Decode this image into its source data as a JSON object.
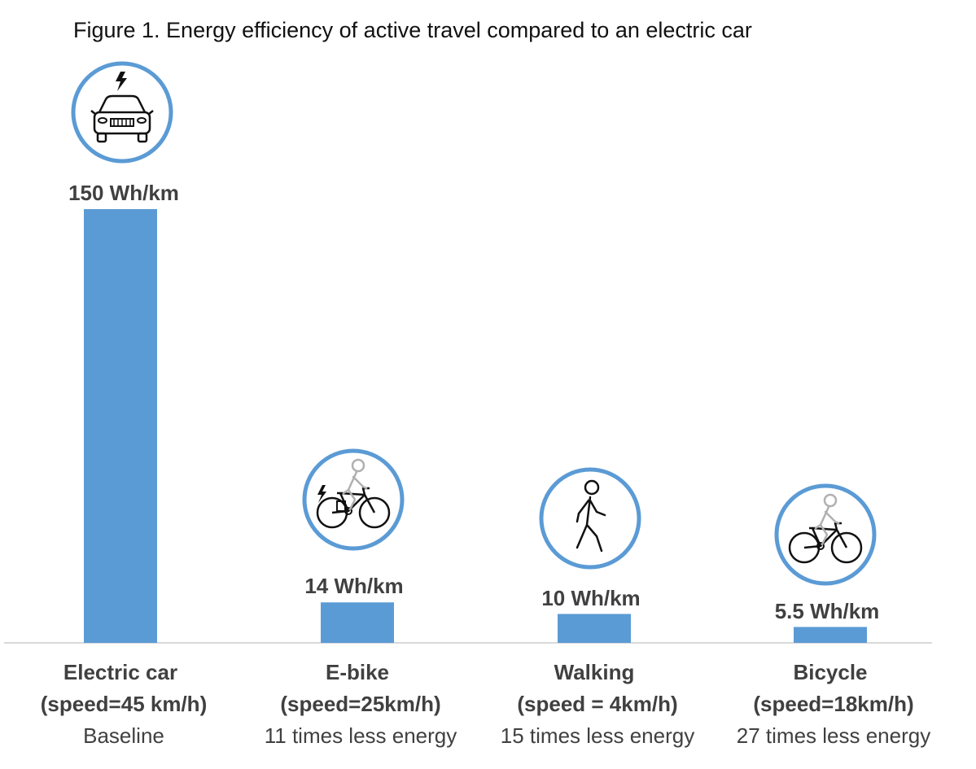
{
  "title": "Figure 1. Energy efficiency of active travel compared to an electric car",
  "chart_data": {
    "type": "bar",
    "title": "Figure 1. Energy efficiency of active travel compared to an electric car",
    "unit": "Wh/km",
    "categories": [
      "Electric car",
      "E-bike",
      "Walking",
      "Bicycle"
    ],
    "values": [
      150,
      14,
      10,
      5.5
    ],
    "value_labels": [
      "150 Wh/km",
      "14 Wh/km",
      "10 Wh/km",
      "5.5 Wh/km"
    ],
    "speeds": [
      "(speed=45 km/h)",
      "(speed=25km/h)",
      "(speed = 4km/h)",
      "(speed=18km/h)"
    ],
    "notes": [
      "Baseline",
      "11 times less energy",
      "15 times less energy",
      "27 times less energy"
    ],
    "icons": [
      "electric-car-icon",
      "e-bike-icon",
      "walking-person-icon",
      "bicycle-icon"
    ],
    "ylim": [
      0,
      150
    ],
    "grid": false,
    "colors": {
      "bar": "#5b9bd5",
      "icon_ring": "#5b9bd5",
      "axis": "#d9d9d9",
      "text": "#404040"
    }
  }
}
